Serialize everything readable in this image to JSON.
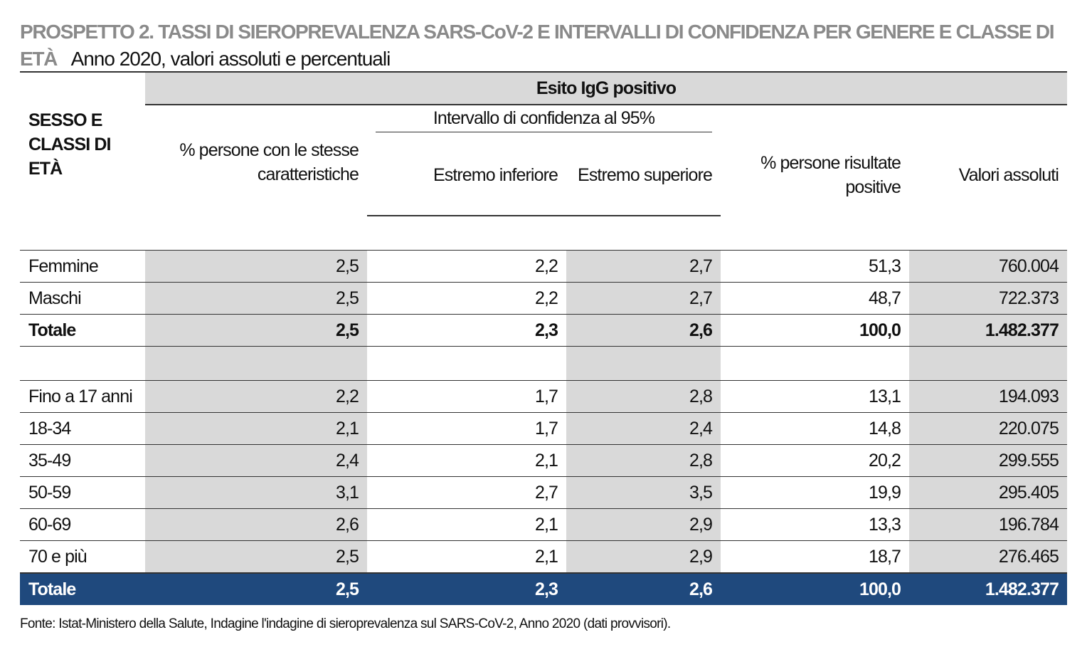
{
  "title": {
    "prefix": "PROSPETTO 2. TASSI DI SIEROPREVALENZA SARS-CoV-2 E INTERVALLI DI CONFIDENZA PER GENERE E CLASSE DI ETÀ",
    "subtitle": "Anno 2020, valori assoluti e percentuali"
  },
  "header": {
    "group": "Esito IgG positivo",
    "row_label": "SESSO E CLASSI DI ETÀ",
    "ci_group": "Intervallo di confidenza al 95%",
    "columns": [
      "% persone con le stesse caratteristiche",
      "Estremo inferiore",
      "Estremo superiore",
      "% persone risultate positive",
      "Valori assoluti"
    ]
  },
  "sex_rows": [
    {
      "label": "Femmine",
      "values": [
        "2,5",
        "2,2",
        "2,7",
        "51,3",
        "760.004"
      ]
    },
    {
      "label": "Maschi",
      "values": [
        "2,5",
        "2,2",
        "2,7",
        "48,7",
        "722.373"
      ]
    },
    {
      "label": "Totale",
      "values": [
        "2,5",
        "2,3",
        "2,6",
        "100,0",
        "1.482.377"
      ]
    }
  ],
  "age_rows": [
    {
      "label": "Fino a 17 anni",
      "values": [
        "2,2",
        "1,7",
        "2,8",
        "13,1",
        "194.093"
      ]
    },
    {
      "label": "18-34",
      "values": [
        "2,1",
        "1,7",
        "2,4",
        "14,8",
        "220.075"
      ]
    },
    {
      "label": "35-49",
      "values": [
        "2,4",
        "2,1",
        "2,8",
        "20,2",
        "299.555"
      ]
    },
    {
      "label": "50-59",
      "values": [
        "3,1",
        "2,7",
        "3,5",
        "19,9",
        "295.405"
      ]
    },
    {
      "label": "60-69",
      "values": [
        "2,6",
        "2,1",
        "2,9",
        "13,3",
        "196.784"
      ]
    },
    {
      "label": "70 e più",
      "values": [
        "2,5",
        "2,1",
        "2,9",
        "18,7",
        "276.465"
      ]
    }
  ],
  "total_row": {
    "label": "Totale",
    "values": [
      "2,5",
      "2,3",
      "2,6",
      "100,0",
      "1.482.377"
    ]
  },
  "source": "Fonte: Istat-Ministero della Salute, Indagine l'indagine di sieroprevalenza sul SARS-CoV-2, Anno 2020  (dati provvisori).",
  "colors": {
    "title_grey": "#8a8a8a",
    "shade": "#d9d9d9",
    "total_band": "#1f497d"
  }
}
